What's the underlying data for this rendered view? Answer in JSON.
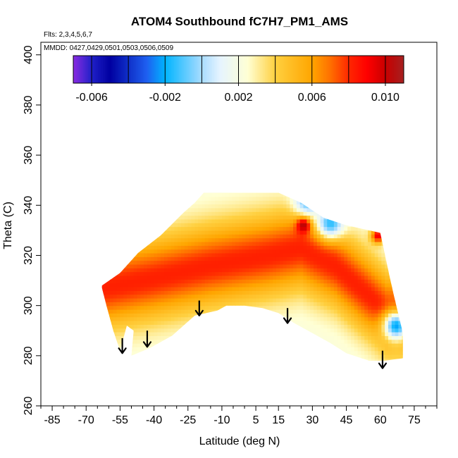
{
  "chart_data": {
    "type": "heatmap",
    "title": "ATOM4 Southbound fC7H7_PM1_AMS",
    "annotations": {
      "flights": "Flts: 2,3,4,5,6,7",
      "dates": "MMDD: 0427,0429,0501,0503,0506,0509"
    },
    "xlabel": "Latitude (deg N)",
    "ylabel": "Theta (C)",
    "xlim": [
      -90,
      85
    ],
    "ylim": [
      260,
      405
    ],
    "x_ticks": [
      -85,
      -70,
      -55,
      -40,
      -25,
      -10,
      5,
      15,
      30,
      45,
      60,
      75
    ],
    "x_tick_labels": [
      "-85",
      "-70",
      "-55",
      "-40",
      "-25",
      "-10",
      "5",
      "15",
      "30",
      "45",
      "60",
      "75"
    ],
    "x_minor_step": 5,
    "y_ticks": [
      260,
      280,
      300,
      320,
      340,
      360,
      380,
      400
    ],
    "y_tick_labels": [
      "260",
      "280",
      "300",
      "320",
      "340",
      "360",
      "380",
      "400"
    ],
    "colorbar": {
      "min": -0.007,
      "max": 0.011,
      "ticks": [
        -0.006,
        -0.002,
        0.002,
        0.006,
        0.01
      ],
      "tick_labels": [
        "-0.006",
        "-0.002",
        "0.002",
        "0.006",
        "0.010"
      ],
      "divisions": [
        -0.007,
        -0.006,
        -0.004,
        -0.002,
        0.0,
        0.002,
        0.004,
        0.006,
        0.008,
        0.01,
        0.011
      ],
      "colors": [
        {
          "value": -0.007,
          "color": "#8a2be2"
        },
        {
          "value": -0.006,
          "color": "#2020c8"
        },
        {
          "value": -0.005,
          "color": "#0000a0"
        },
        {
          "value": -0.003,
          "color": "#1e5ff0"
        },
        {
          "value": -0.002,
          "color": "#00b4ff"
        },
        {
          "value": 0.0,
          "color": "#a8dcff"
        },
        {
          "value": 0.001,
          "color": "#e6f4ff"
        },
        {
          "value": 0.0025,
          "color": "#ffffd4"
        },
        {
          "value": 0.004,
          "color": "#ffd040"
        },
        {
          "value": 0.006,
          "color": "#ffa500"
        },
        {
          "value": 0.007,
          "color": "#ff7000"
        },
        {
          "value": 0.008,
          "color": "#ff2800"
        },
        {
          "value": 0.009,
          "color": "#ff0000"
        },
        {
          "value": 0.01,
          "color": "#c80000"
        },
        {
          "value": 0.011,
          "color": "#a52020"
        }
      ]
    },
    "data_region": {
      "top": [
        [
          -63,
          308
        ],
        [
          -55,
          313
        ],
        [
          -47,
          321
        ],
        [
          -37,
          328
        ],
        [
          -27,
          337
        ],
        [
          -22,
          341
        ],
        [
          -18,
          345
        ],
        [
          -10,
          345
        ],
        [
          15,
          345
        ],
        [
          25,
          341
        ],
        [
          35,
          335
        ],
        [
          45,
          332
        ],
        [
          55,
          330
        ],
        [
          60,
          329
        ],
        [
          64,
          312
        ],
        [
          66,
          304
        ],
        [
          70,
          289
        ]
      ],
      "bottom": [
        [
          -63,
          307
        ],
        [
          -61,
          300
        ],
        [
          -58,
          290
        ],
        [
          -55,
          282
        ],
        [
          -50,
          280
        ],
        [
          -42,
          283
        ],
        [
          -32,
          288
        ],
        [
          -22,
          296
        ],
        [
          -12,
          298
        ],
        [
          -8,
          300
        ],
        [
          0,
          300
        ],
        [
          8,
          299
        ],
        [
          15,
          297
        ],
        [
          22,
          293
        ],
        [
          30,
          289
        ],
        [
          38,
          285
        ],
        [
          45,
          281
        ],
        [
          55,
          278
        ],
        [
          62,
          278
        ],
        [
          70,
          279
        ]
      ],
      "hole": [
        [
          -55,
          282
        ],
        [
          -52,
          292
        ],
        [
          -49,
          290
        ],
        [
          -50,
          280
        ]
      ]
    },
    "field": {
      "axis_center": [
        [
          -63,
          307
        ],
        [
          -40,
          311
        ],
        [
          -15,
          316
        ],
        [
          10,
          320
        ],
        [
          25,
          323
        ],
        [
          40,
          316
        ],
        [
          55,
          304
        ],
        [
          63,
          297
        ]
      ],
      "peak_value": 0.0082,
      "edge_value": 0.0022,
      "decay_width_theta": 16,
      "negative_pockets": [
        {
          "lat": 28,
          "theta": 342,
          "value": -0.0012
        },
        {
          "lat": 67,
          "theta": 292,
          "value": -0.0022
        },
        {
          "lat": 38,
          "theta": 333,
          "value": -0.0015
        }
      ],
      "positive_pockets": [
        {
          "lat": 26,
          "theta": 332,
          "value": 0.0105
        },
        {
          "lat": 59,
          "theta": 328,
          "value": 0.0095
        }
      ]
    },
    "arrows": [
      {
        "lat": -54,
        "theta_top": 287,
        "theta_tip": 281
      },
      {
        "lat": -43,
        "theta_top": 290,
        "theta_tip": 283.5
      },
      {
        "lat": -20,
        "theta_top": 302,
        "theta_tip": 296
      },
      {
        "lat": 19,
        "theta_top": 299,
        "theta_tip": 293
      },
      {
        "lat": 61,
        "theta_top": 282,
        "theta_tip": 275
      }
    ]
  }
}
